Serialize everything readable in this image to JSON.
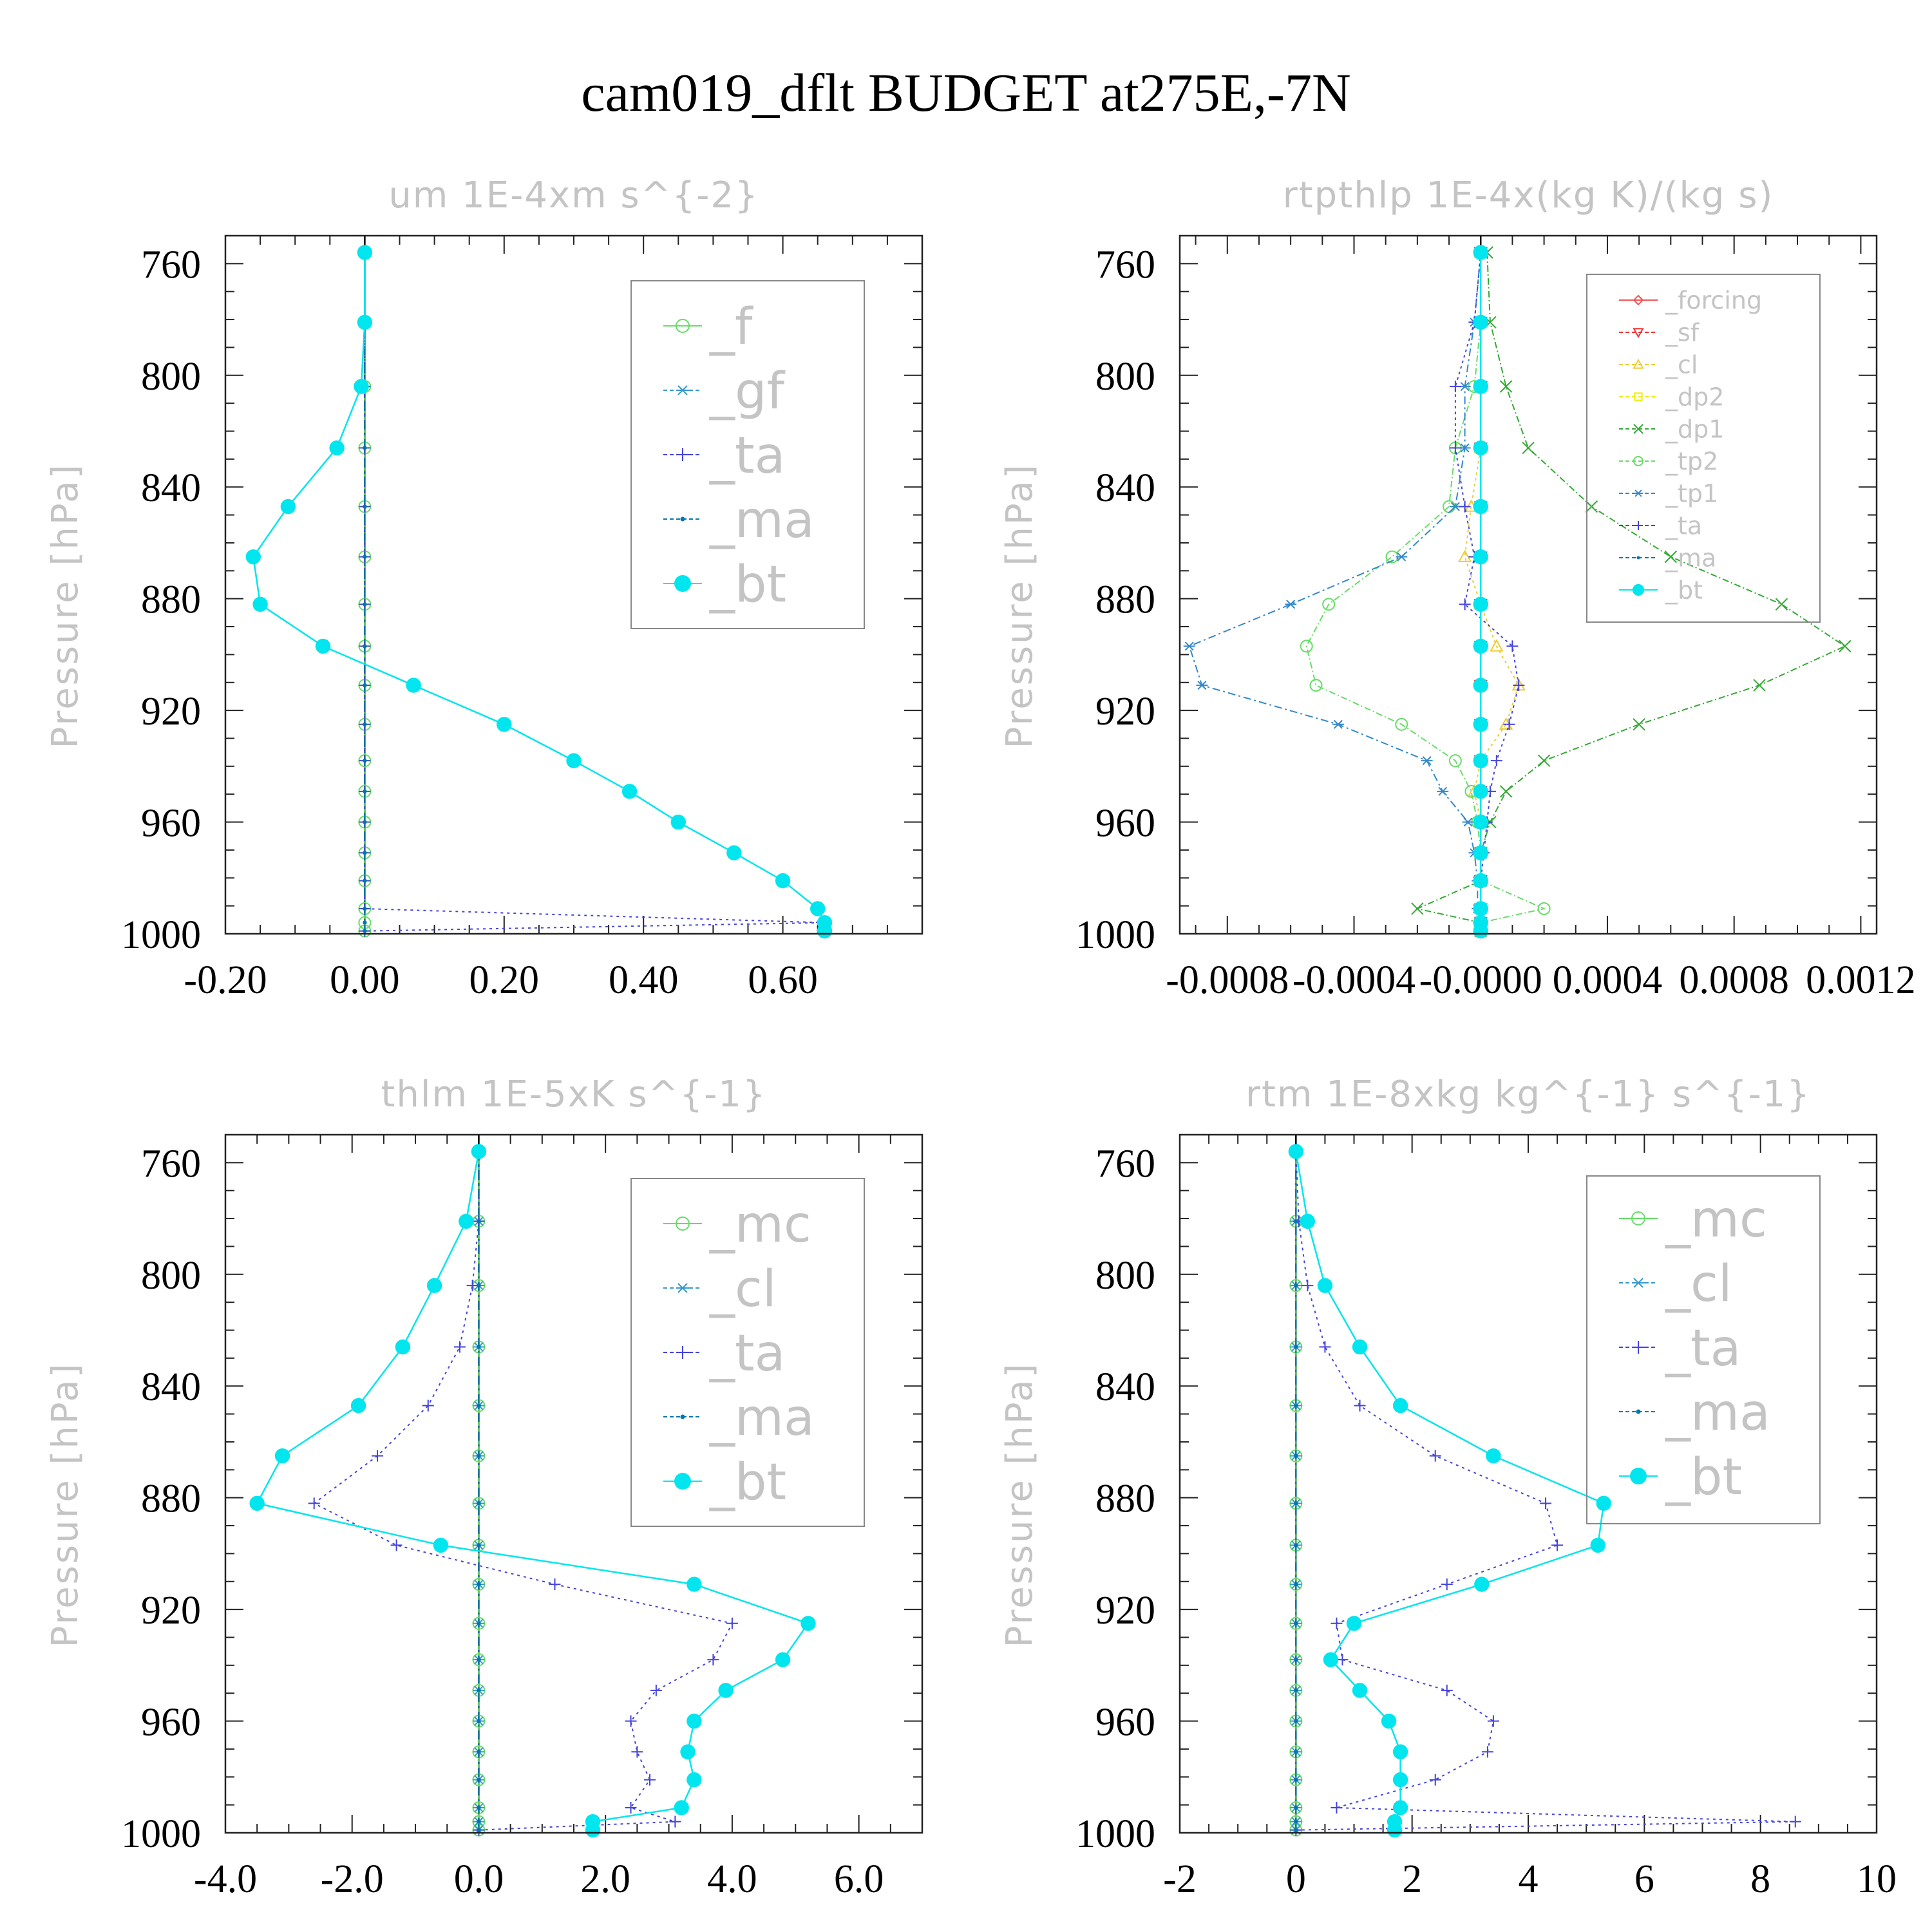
{
  "title": "cam019_dflt  BUDGET at275E,-7N",
  "colors": {
    "f": "#66dd66",
    "gf": "#3399cc",
    "ta": "#4444dd",
    "ma": "#0077aa",
    "bt": "#00e5ee",
    "forcing": "#ee5555",
    "sf": "#ee3333",
    "cl_yellow": "#eecc33",
    "dp2": "#eeee00",
    "dp1": "#33aa33",
    "tp2": "#66dd66",
    "tp1": "#3388cc",
    "mc": "#66dd66"
  },
  "chart_data": [
    {
      "type": "line",
      "title": "um  1E-4xm s^{-2}",
      "ylabel": "Pressure [hPa]",
      "ylim": [
        1000,
        750
      ],
      "xlim": [
        -0.2,
        0.8
      ],
      "yticks": [
        1000,
        960,
        920,
        880,
        840,
        800,
        760
      ],
      "ytick_labels": [
        "1000",
        "960",
        "920",
        "880",
        "840",
        "800",
        "760"
      ],
      "xticks": [
        -0.2,
        0.0,
        0.2,
        0.4,
        0.6
      ],
      "xtick_labels": [
        "-0.20",
        "0.00",
        "0.20",
        "0.40",
        "0.60"
      ],
      "levels": [
        756,
        781,
        804,
        826,
        847,
        865,
        882,
        897,
        911,
        925,
        938,
        949,
        960,
        971,
        981,
        991,
        996,
        999
      ],
      "series": [
        {
          "name": "_f",
          "color_key": "f",
          "marker": "circle",
          "dash": "0",
          "values": [
            0,
            0,
            0,
            0,
            0,
            0,
            0,
            0,
            0,
            0,
            0,
            0,
            0,
            0,
            0,
            0,
            0,
            0
          ]
        },
        {
          "name": "_gf",
          "color_key": "gf",
          "marker": "star",
          "dash": "14,6,3,6",
          "values": [
            0,
            0,
            -0.005,
            -0.04,
            -0.11,
            -0.16,
            -0.15,
            -0.06,
            0.07,
            0.2,
            0.3,
            0.38,
            0.45,
            0.53,
            0.6,
            0.65,
            0.66,
            0.66
          ]
        },
        {
          "name": "_ta",
          "color_key": "ta",
          "marker": "plus",
          "dash": "4,6",
          "values": [
            0,
            0,
            0,
            0,
            0,
            0,
            0,
            0,
            0,
            0,
            0,
            0,
            0,
            0,
            0,
            0,
            0.66,
            0
          ]
        },
        {
          "name": "_ma",
          "color_key": "ma",
          "marker": "dot",
          "dash": "14,6,3,6",
          "values": [
            0,
            0,
            0,
            0,
            0,
            0,
            0,
            0,
            0,
            0,
            0,
            0,
            0,
            0,
            0,
            0,
            0,
            0
          ]
        },
        {
          "name": "_bt",
          "color_key": "bt",
          "marker": "filled",
          "dash": "0",
          "values": [
            0,
            0,
            -0.005,
            -0.04,
            -0.11,
            -0.16,
            -0.15,
            -0.06,
            0.07,
            0.2,
            0.3,
            0.38,
            0.45,
            0.53,
            0.6,
            0.65,
            0.66,
            0.66
          ]
        }
      ],
      "legend": {
        "position": "top-right",
        "size": "large"
      }
    },
    {
      "type": "line",
      "title": "rtpthlp  1E-4x(kg K)/(kg s)",
      "ylabel": "Pressure [hPa]",
      "ylim": [
        1000,
        750
      ],
      "xlim": [
        -0.00095,
        0.00125
      ],
      "yticks": [
        1000,
        960,
        920,
        880,
        840,
        800,
        760
      ],
      "ytick_labels": [
        "1000",
        "960",
        "920",
        "880",
        "840",
        "800",
        "760"
      ],
      "xticks": [
        -0.0008,
        -0.0004,
        0.0,
        0.0004,
        0.0008,
        0.0012
      ],
      "xtick_labels": [
        "-0.0008",
        "-0.0004",
        "-0.0000",
        "0.0004",
        "0.0008",
        "0.0012"
      ],
      "levels": [
        756,
        781,
        804,
        826,
        847,
        865,
        882,
        897,
        911,
        925,
        938,
        949,
        960,
        971,
        981,
        991,
        996,
        999
      ],
      "series": [
        {
          "name": "_forcing",
          "color_key": "forcing",
          "marker": "diamond",
          "dash": "0",
          "values": [
            0,
            0,
            0,
            0,
            0,
            0,
            0,
            0,
            0,
            0,
            0,
            0,
            0,
            0,
            0,
            0,
            0,
            0
          ]
        },
        {
          "name": "_sf",
          "color_key": "sf",
          "marker": "tri-down",
          "dash": "10,5",
          "values": [
            0,
            0,
            0,
            0,
            0,
            0,
            0,
            0,
            0,
            0,
            0,
            0,
            0,
            0,
            0,
            0,
            0,
            0
          ]
        },
        {
          "name": "_cl",
          "color_key": "cl_yellow",
          "marker": "tri-up",
          "dash": "4,5",
          "values": [
            0,
            0,
            0,
            0,
            -3e-05,
            -5e-05,
            0,
            5e-05,
            0.00012,
            8e-05,
            0,
            -2e-05,
            0,
            0,
            0,
            0,
            0,
            0
          ]
        },
        {
          "name": "_dp2",
          "color_key": "dp2",
          "marker": "square",
          "dash": "10,4,2,4",
          "values": [
            0,
            0,
            0,
            0,
            0,
            0,
            0,
            0,
            0,
            0,
            0,
            0,
            0,
            0,
            0,
            0,
            0,
            0
          ]
        },
        {
          "name": "_dp1",
          "color_key": "dp1",
          "marker": "x",
          "dash": "10,4,2,4",
          "values": [
            2e-05,
            3e-05,
            8e-05,
            0.00015,
            0.00035,
            0.0006,
            0.00095,
            0.00115,
            0.00088,
            0.0005,
            0.0002,
            8e-05,
            3e-05,
            0,
            0,
            -0.0002,
            0.0,
            0
          ]
        },
        {
          "name": "_tp2",
          "color_key": "tp2",
          "marker": "circle",
          "dash": "10,4,2,4",
          "values": [
            0,
            0,
            -2e-05,
            -8e-05,
            -0.0001,
            -0.00028,
            -0.00048,
            -0.00055,
            -0.00052,
            -0.00025,
            -8e-05,
            -3e-05,
            -1e-05,
            0,
            0,
            0.0002,
            0,
            0
          ]
        },
        {
          "name": "_tp1",
          "color_key": "tp1",
          "marker": "star",
          "dash": "12,5,3,5",
          "values": [
            0,
            -2e-05,
            -5e-05,
            -5e-05,
            -8e-05,
            -0.00025,
            -0.0006,
            -0.00092,
            -0.00088,
            -0.00045,
            -0.00017,
            -0.00012,
            -4e-05,
            -2e-05,
            -1e-05,
            -1e-05,
            0,
            0
          ]
        },
        {
          "name": "_ta",
          "color_key": "ta",
          "marker": "plus",
          "dash": "4,5",
          "values": [
            0,
            -2e-05,
            -8e-05,
            -8e-05,
            -5e-05,
            -2e-05,
            -5e-05,
            0.0001,
            0.00012,
            9e-05,
            5e-05,
            3e-05,
            2e-05,
            1e-05,
            0,
            0,
            0,
            0
          ]
        },
        {
          "name": "_ma",
          "color_key": "ma",
          "marker": "dot",
          "dash": "12,5,3,5",
          "values": [
            0,
            0,
            0,
            0,
            0,
            0,
            0,
            0,
            0,
            0,
            0,
            0,
            0,
            0,
            0,
            0,
            0,
            0
          ]
        },
        {
          "name": "_bt",
          "color_key": "bt",
          "marker": "filled",
          "dash": "0",
          "values": [
            0,
            0,
            0,
            0,
            0,
            0,
            0,
            0,
            0,
            0,
            0,
            0,
            0,
            0,
            0,
            0,
            0,
            0
          ]
        }
      ],
      "legend": {
        "position": "top-right",
        "size": "small"
      }
    },
    {
      "type": "line",
      "title": "thlm  1E-5xK s^{-1}",
      "ylabel": "Pressure [hPa]",
      "ylim": [
        1000,
        750
      ],
      "xlim": [
        -4.0,
        7.0
      ],
      "yticks": [
        1000,
        960,
        920,
        880,
        840,
        800,
        760
      ],
      "ytick_labels": [
        "1000",
        "960",
        "920",
        "880",
        "840",
        "800",
        "760"
      ],
      "xticks": [
        -4.0,
        -2.0,
        0.0,
        2.0,
        4.0,
        6.0
      ],
      "xtick_labels": [
        "-4.0",
        "-2.0",
        "0.0",
        "2.0",
        "4.0",
        "6.0"
      ],
      "levels": [
        756,
        781,
        804,
        826,
        847,
        865,
        882,
        897,
        911,
        925,
        938,
        949,
        960,
        971,
        981,
        991,
        996,
        999
      ],
      "series": [
        {
          "name": "_mc",
          "color_key": "mc",
          "marker": "circle",
          "dash": "0",
          "values": [
            0,
            0,
            0,
            0,
            0,
            0,
            0,
            0,
            0,
            0,
            0,
            0,
            0,
            0,
            0,
            0,
            0,
            0
          ]
        },
        {
          "name": "_cl",
          "color_key": "gf",
          "marker": "star",
          "dash": "14,6,3,6",
          "values": [
            0,
            0,
            0,
            0,
            0,
            0,
            0,
            0,
            0,
            0,
            0,
            0,
            0,
            0,
            0,
            0,
            0,
            0
          ]
        },
        {
          "name": "_ta",
          "color_key": "ta",
          "marker": "plus",
          "dash": "4,6",
          "values": [
            0,
            0,
            -0.1,
            -0.3,
            -0.8,
            -1.6,
            -2.6,
            -1.3,
            1.2,
            4.0,
            3.7,
            2.8,
            2.4,
            2.5,
            2.7,
            2.4,
            3.1,
            0.0
          ]
        },
        {
          "name": "_ma",
          "color_key": "ma",
          "marker": "dot",
          "dash": "14,6,3,6",
          "values": [
            0,
            0,
            0,
            0,
            0,
            0,
            0,
            0,
            0,
            0,
            0,
            0,
            0,
            0,
            0,
            0,
            0,
            0
          ]
        },
        {
          "name": "_bt",
          "color_key": "bt",
          "marker": "filled",
          "dash": "0",
          "values": [
            0,
            -0.2,
            -0.7,
            -1.2,
            -1.9,
            -3.1,
            -3.5,
            -0.6,
            3.4,
            5.2,
            4.8,
            3.9,
            3.4,
            3.3,
            3.4,
            3.2,
            1.8,
            1.8
          ]
        }
      ],
      "legend": {
        "position": "top-right",
        "size": "large"
      }
    },
    {
      "type": "line",
      "title": "rtm  1E-8xkg kg^{-1} s^{-1}",
      "ylabel": "Pressure [hPa]",
      "ylim": [
        1000,
        750
      ],
      "xlim": [
        -2,
        10
      ],
      "yticks": [
        1000,
        960,
        920,
        880,
        840,
        800,
        760
      ],
      "ytick_labels": [
        "1000",
        "960",
        "920",
        "880",
        "840",
        "800",
        "760"
      ],
      "xticks": [
        -2,
        0,
        2,
        4,
        6,
        8,
        10
      ],
      "xtick_labels": [
        "-2",
        "0",
        "2",
        "4",
        "6",
        "8",
        "10"
      ],
      "levels": [
        756,
        781,
        804,
        826,
        847,
        865,
        882,
        897,
        911,
        925,
        938,
        949,
        960,
        971,
        981,
        991,
        996,
        999
      ],
      "series": [
        {
          "name": "_mc",
          "color_key": "mc",
          "marker": "circle",
          "dash": "0",
          "values": [
            0,
            0,
            0,
            0,
            0,
            0,
            0,
            0,
            0,
            0,
            0,
            0,
            0,
            0,
            0,
            0,
            0,
            0
          ]
        },
        {
          "name": "_cl",
          "color_key": "gf",
          "marker": "star",
          "dash": "14,6,3,6",
          "values": [
            0,
            0,
            0,
            0,
            0,
            0,
            0,
            0,
            0,
            0,
            0,
            0,
            0,
            0,
            0,
            0,
            0,
            0
          ]
        },
        {
          "name": "_ta",
          "color_key": "ta",
          "marker": "plus",
          "dash": "4,6",
          "values": [
            0,
            0.05,
            0.2,
            0.5,
            1.1,
            2.4,
            4.3,
            4.5,
            2.6,
            0.7,
            0.8,
            2.6,
            3.4,
            3.3,
            2.4,
            0.7,
            8.6,
            0.0
          ]
        },
        {
          "name": "_ma",
          "color_key": "ma",
          "marker": "dot",
          "dash": "14,6,3,6",
          "values": [
            0,
            0,
            0,
            0,
            0,
            0,
            0,
            0,
            0,
            0,
            0,
            0,
            0,
            0,
            0,
            0,
            0,
            0
          ]
        },
        {
          "name": "_bt",
          "color_key": "bt",
          "marker": "filled",
          "dash": "0",
          "values": [
            0,
            0.2,
            0.5,
            1.1,
            1.8,
            3.4,
            5.3,
            5.2,
            3.2,
            1.0,
            0.6,
            1.1,
            1.6,
            1.8,
            1.8,
            1.8,
            1.7,
            1.7
          ]
        }
      ],
      "legend": {
        "position": "top-right",
        "size": "large"
      }
    }
  ]
}
